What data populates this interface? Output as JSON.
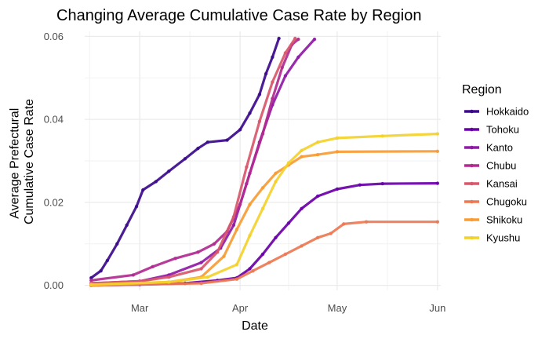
{
  "chart_data": {
    "type": "line",
    "title": "Changing Average Cumulative Case Rate by Region",
    "xlabel": "Date",
    "ylabel_lines": [
      "Average Prefectural",
      "Cumulative Case Rate"
    ],
    "x_ticks": [
      {
        "date": "2020-03-01",
        "label": "Mar"
      },
      {
        "date": "2020-04-01",
        "label": "Apr"
      },
      {
        "date": "2020-05-01",
        "label": "May"
      },
      {
        "date": "2020-06-01",
        "label": "Jun"
      }
    ],
    "y_ticks": [
      {
        "value": 0,
        "label": "0.00"
      },
      {
        "value": 0.02,
        "label": "0.02"
      },
      {
        "value": 0.04,
        "label": "0.04"
      },
      {
        "value": 0.06,
        "label": "0.06"
      }
    ],
    "xlim": [
      "2020-02-13",
      "2020-06-02"
    ],
    "ylim": [
      -0.0012,
      0.0612
    ],
    "grid": true,
    "legend": {
      "title": "Region",
      "position": "right"
    },
    "series": [
      {
        "name": "Hokkaido",
        "color": "#3b0a8c",
        "points": [
          [
            "2020-02-15",
            0.0018
          ],
          [
            "2020-02-18",
            0.0035
          ],
          [
            "2020-02-20",
            0.006
          ],
          [
            "2020-02-23",
            0.01
          ],
          [
            "2020-02-26",
            0.0145
          ],
          [
            "2020-02-29",
            0.019
          ],
          [
            "2020-03-02",
            0.023
          ],
          [
            "2020-03-06",
            0.025
          ],
          [
            "2020-03-10",
            0.0275
          ],
          [
            "2020-03-15",
            0.0305
          ],
          [
            "2020-03-19",
            0.033
          ],
          [
            "2020-03-22",
            0.0345
          ],
          [
            "2020-03-28",
            0.035
          ],
          [
            "2020-04-01",
            0.0375
          ],
          [
            "2020-04-04",
            0.0415
          ],
          [
            "2020-04-07",
            0.046
          ],
          [
            "2020-04-09",
            0.051
          ],
          [
            "2020-04-11",
            0.055
          ],
          [
            "2020-04-13",
            0.0595
          ]
        ]
      },
      {
        "name": "Tohoku",
        "color": "#6a00a8",
        "points": [
          [
            "2020-02-15",
            0.0
          ],
          [
            "2020-03-01",
            0.0002
          ],
          [
            "2020-03-15",
            0.0005
          ],
          [
            "2020-03-25",
            0.0012
          ],
          [
            "2020-03-31",
            0.0018
          ],
          [
            "2020-04-04",
            0.004
          ],
          [
            "2020-04-08",
            0.0075
          ],
          [
            "2020-04-12",
            0.0115
          ],
          [
            "2020-04-16",
            0.015
          ],
          [
            "2020-04-20",
            0.0185
          ],
          [
            "2020-04-25",
            0.0215
          ],
          [
            "2020-05-01",
            0.0232
          ],
          [
            "2020-05-08",
            0.0242
          ],
          [
            "2020-05-15",
            0.0245
          ],
          [
            "2020-06-01",
            0.0246
          ]
        ]
      },
      {
        "name": "Kanto",
        "color": "#8f1aa6",
        "points": [
          [
            "2020-02-15",
            0.0005
          ],
          [
            "2020-03-01",
            0.001
          ],
          [
            "2020-03-10",
            0.0025
          ],
          [
            "2020-03-20",
            0.0055
          ],
          [
            "2020-03-26",
            0.009
          ],
          [
            "2020-03-30",
            0.0145
          ],
          [
            "2020-04-03",
            0.0245
          ],
          [
            "2020-04-07",
            0.0345
          ],
          [
            "2020-04-11",
            0.0435
          ],
          [
            "2020-04-15",
            0.0505
          ],
          [
            "2020-04-19",
            0.055
          ],
          [
            "2020-04-24",
            0.0593
          ]
        ]
      },
      {
        "name": "Chubu",
        "color": "#b12a90",
        "points": [
          [
            "2020-02-15",
            0.0012
          ],
          [
            "2020-02-28",
            0.0025
          ],
          [
            "2020-03-05",
            0.0045
          ],
          [
            "2020-03-12",
            0.0065
          ],
          [
            "2020-03-19",
            0.008
          ],
          [
            "2020-03-24",
            0.01
          ],
          [
            "2020-03-28",
            0.013
          ],
          [
            "2020-04-01",
            0.0195
          ],
          [
            "2020-04-04",
            0.027
          ],
          [
            "2020-04-08",
            0.0365
          ],
          [
            "2020-04-11",
            0.045
          ],
          [
            "2020-04-14",
            0.0525
          ],
          [
            "2020-04-17",
            0.058
          ],
          [
            "2020-04-19",
            0.0593
          ]
        ]
      },
      {
        "name": "Kansai",
        "color": "#d8576b",
        "points": [
          [
            "2020-02-15",
            0.0005
          ],
          [
            "2020-03-01",
            0.001
          ],
          [
            "2020-03-10",
            0.002
          ],
          [
            "2020-03-20",
            0.004
          ],
          [
            "2020-03-25",
            0.008
          ],
          [
            "2020-03-30",
            0.0165
          ],
          [
            "2020-04-03",
            0.0285
          ],
          [
            "2020-04-07",
            0.0395
          ],
          [
            "2020-04-11",
            0.049
          ],
          [
            "2020-04-15",
            0.056
          ],
          [
            "2020-04-18",
            0.0595
          ]
        ]
      },
      {
        "name": "Chugoku",
        "color": "#ec7853",
        "points": [
          [
            "2020-02-15",
            0.0
          ],
          [
            "2020-03-20",
            0.0005
          ],
          [
            "2020-03-31",
            0.0015
          ],
          [
            "2020-04-05",
            0.0035
          ],
          [
            "2020-04-10",
            0.0055
          ],
          [
            "2020-04-15",
            0.0075
          ],
          [
            "2020-04-20",
            0.0095
          ],
          [
            "2020-04-25",
            0.0115
          ],
          [
            "2020-04-29",
            0.0125
          ],
          [
            "2020-05-03",
            0.0148
          ],
          [
            "2020-05-10",
            0.0153
          ],
          [
            "2020-06-01",
            0.0153
          ]
        ]
      },
      {
        "name": "Shikoku",
        "color": "#f89c34",
        "points": [
          [
            "2020-02-15",
            0.0
          ],
          [
            "2020-03-10",
            0.0008
          ],
          [
            "2020-03-20",
            0.002
          ],
          [
            "2020-03-27",
            0.007
          ],
          [
            "2020-03-31",
            0.0135
          ],
          [
            "2020-04-04",
            0.0195
          ],
          [
            "2020-04-08",
            0.0235
          ],
          [
            "2020-04-12",
            0.027
          ],
          [
            "2020-04-16",
            0.029
          ],
          [
            "2020-04-20",
            0.031
          ],
          [
            "2020-04-25",
            0.0315
          ],
          [
            "2020-05-01",
            0.0322
          ],
          [
            "2020-06-01",
            0.0323
          ]
        ]
      },
      {
        "name": "Kyushu",
        "color": "#f3d12b",
        "points": [
          [
            "2020-02-15",
            0.0002
          ],
          [
            "2020-03-10",
            0.0008
          ],
          [
            "2020-03-22",
            0.002
          ],
          [
            "2020-03-31",
            0.005
          ],
          [
            "2020-04-04",
            0.012
          ],
          [
            "2020-04-08",
            0.0185
          ],
          [
            "2020-04-12",
            0.025
          ],
          [
            "2020-04-16",
            0.0295
          ],
          [
            "2020-04-20",
            0.0325
          ],
          [
            "2020-04-25",
            0.0345
          ],
          [
            "2020-05-01",
            0.0355
          ],
          [
            "2020-05-15",
            0.036
          ],
          [
            "2020-06-01",
            0.0365
          ]
        ]
      }
    ]
  }
}
